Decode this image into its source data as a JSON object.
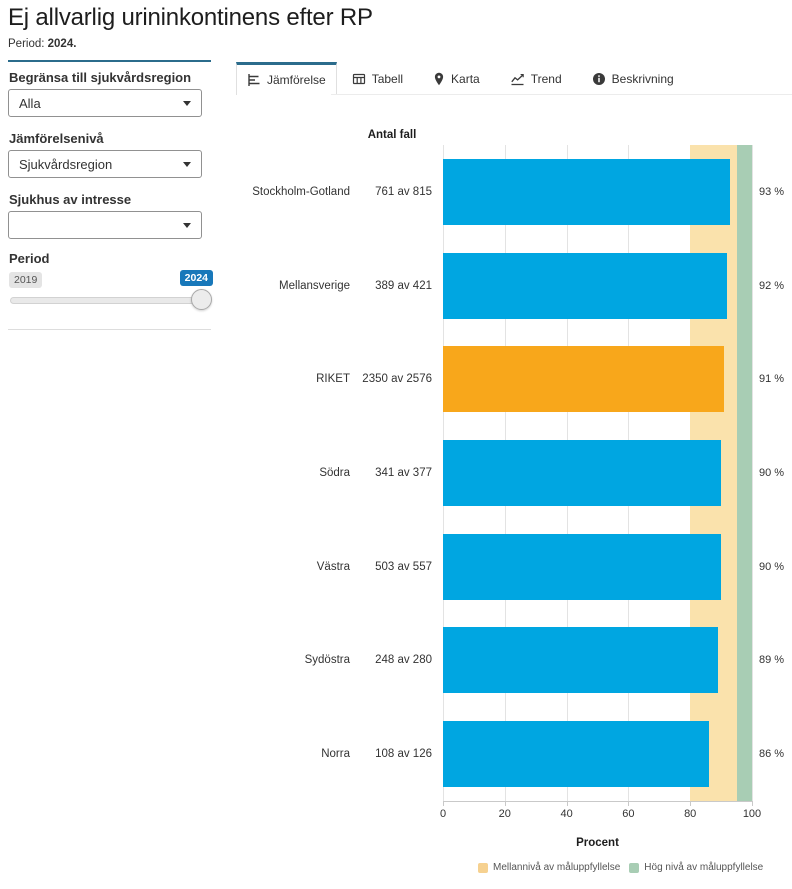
{
  "page": {
    "title": "Ej allvarlig urininkontinens efter RP",
    "period_label": "Period:",
    "period_value": "2024."
  },
  "sidebar": {
    "filters": [
      {
        "label": "Begränsa till sjukvårdsregion",
        "value": "Alla"
      },
      {
        "label": "Jämförelsenivå",
        "value": "Sjukvårdsregion"
      },
      {
        "label": "Sjukhus av intresse",
        "value": ""
      }
    ],
    "period": {
      "label": "Period",
      "min": "2019",
      "max": "2024"
    }
  },
  "tabs": [
    {
      "label": "Jämförelse",
      "active": true
    },
    {
      "label": "Tabell",
      "active": false
    },
    {
      "label": "Karta",
      "active": false
    },
    {
      "label": "Trend",
      "active": false
    },
    {
      "label": "Beskrivning",
      "active": false
    }
  ],
  "chart_data": {
    "type": "bar",
    "orientation": "horizontal",
    "column_header": "Antal fall",
    "categories": [
      "Stockholm-Gotland",
      "Mellansverige",
      "RIKET",
      "Södra",
      "Västra",
      "Sydöstra",
      "Norra"
    ],
    "counts": [
      "761 av 815",
      "389 av 421",
      "2350 av 2576",
      "341 av 377",
      "503 av 557",
      "248 av 280",
      "108 av 126"
    ],
    "values": [
      93,
      92,
      91,
      90,
      90,
      89,
      86
    ],
    "value_labels": [
      "93 %",
      "92 %",
      "91 %",
      "90 %",
      "90 %",
      "89 %",
      "86 %"
    ],
    "highlight_category": "RIKET",
    "xlabel": "Procent",
    "xlim": [
      0,
      100
    ],
    "xticks": [
      0,
      20,
      40,
      60,
      80,
      100
    ],
    "grid": true,
    "bar_color": "#00a6e1",
    "highlight_color": "#f8a71b",
    "bands": [
      {
        "name": "Mellannivå av måluppfyllelse",
        "from": 80,
        "to": 95,
        "color": "#fae2ac"
      },
      {
        "name": "Hög nivå av måluppfyllelse",
        "from": 95,
        "to": 100,
        "color": "#a8cdb4"
      }
    ],
    "legend": [
      {
        "label": "Mellannivå av måluppfyllelse",
        "color": "#f6d190"
      },
      {
        "label": "Hög nivå av måluppfyllelse",
        "color": "#a8cdb4"
      }
    ],
    "legend_position": "bottom"
  },
  "colors": {
    "accent": "#2b6c8c",
    "slider_badge_active": "#1878ba"
  }
}
